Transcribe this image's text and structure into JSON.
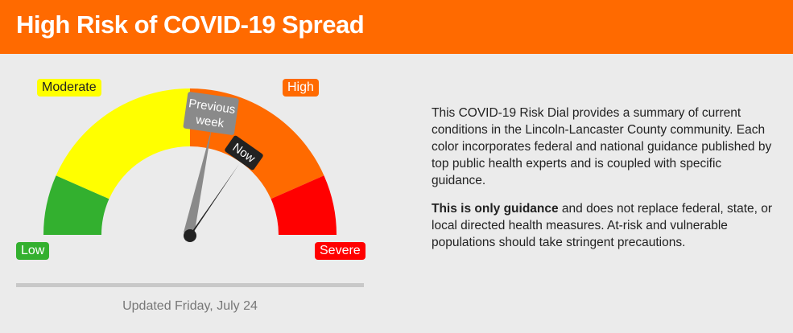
{
  "header": {
    "title": "High Risk of COVID-19 Spread"
  },
  "dial": {
    "labels": {
      "moderate": "Moderate",
      "high": "High",
      "low": "Low",
      "severe": "Severe"
    },
    "segments": [
      {
        "name": "Low",
        "color": "#33b02f"
      },
      {
        "name": "Moderate",
        "color": "#ffff00"
      },
      {
        "name": "High",
        "color": "#ff6a00"
      },
      {
        "name": "Severe",
        "color": "#ff0000"
      }
    ],
    "needles": {
      "previous": {
        "label": "Previous\nweek",
        "label_line1": "Previous",
        "label_line2": "week",
        "color": "#8a8a8a"
      },
      "now": {
        "label": "Now",
        "color": "#222222"
      }
    },
    "updated": "Updated Friday, July 24"
  },
  "description": {
    "paragraph1": "This COVID-19 Risk Dial provides a summary of current conditions in the Lincoln-Lancaster County community. Each color incorporates federal and national guidance published by top public health experts and is coupled with specific guidance.",
    "paragraph2_bold": "This is only guidance",
    "paragraph2_rest": " and does not replace federal, state, or local directed health measures. At-risk and vulnerable populations should take stringent precautions."
  }
}
